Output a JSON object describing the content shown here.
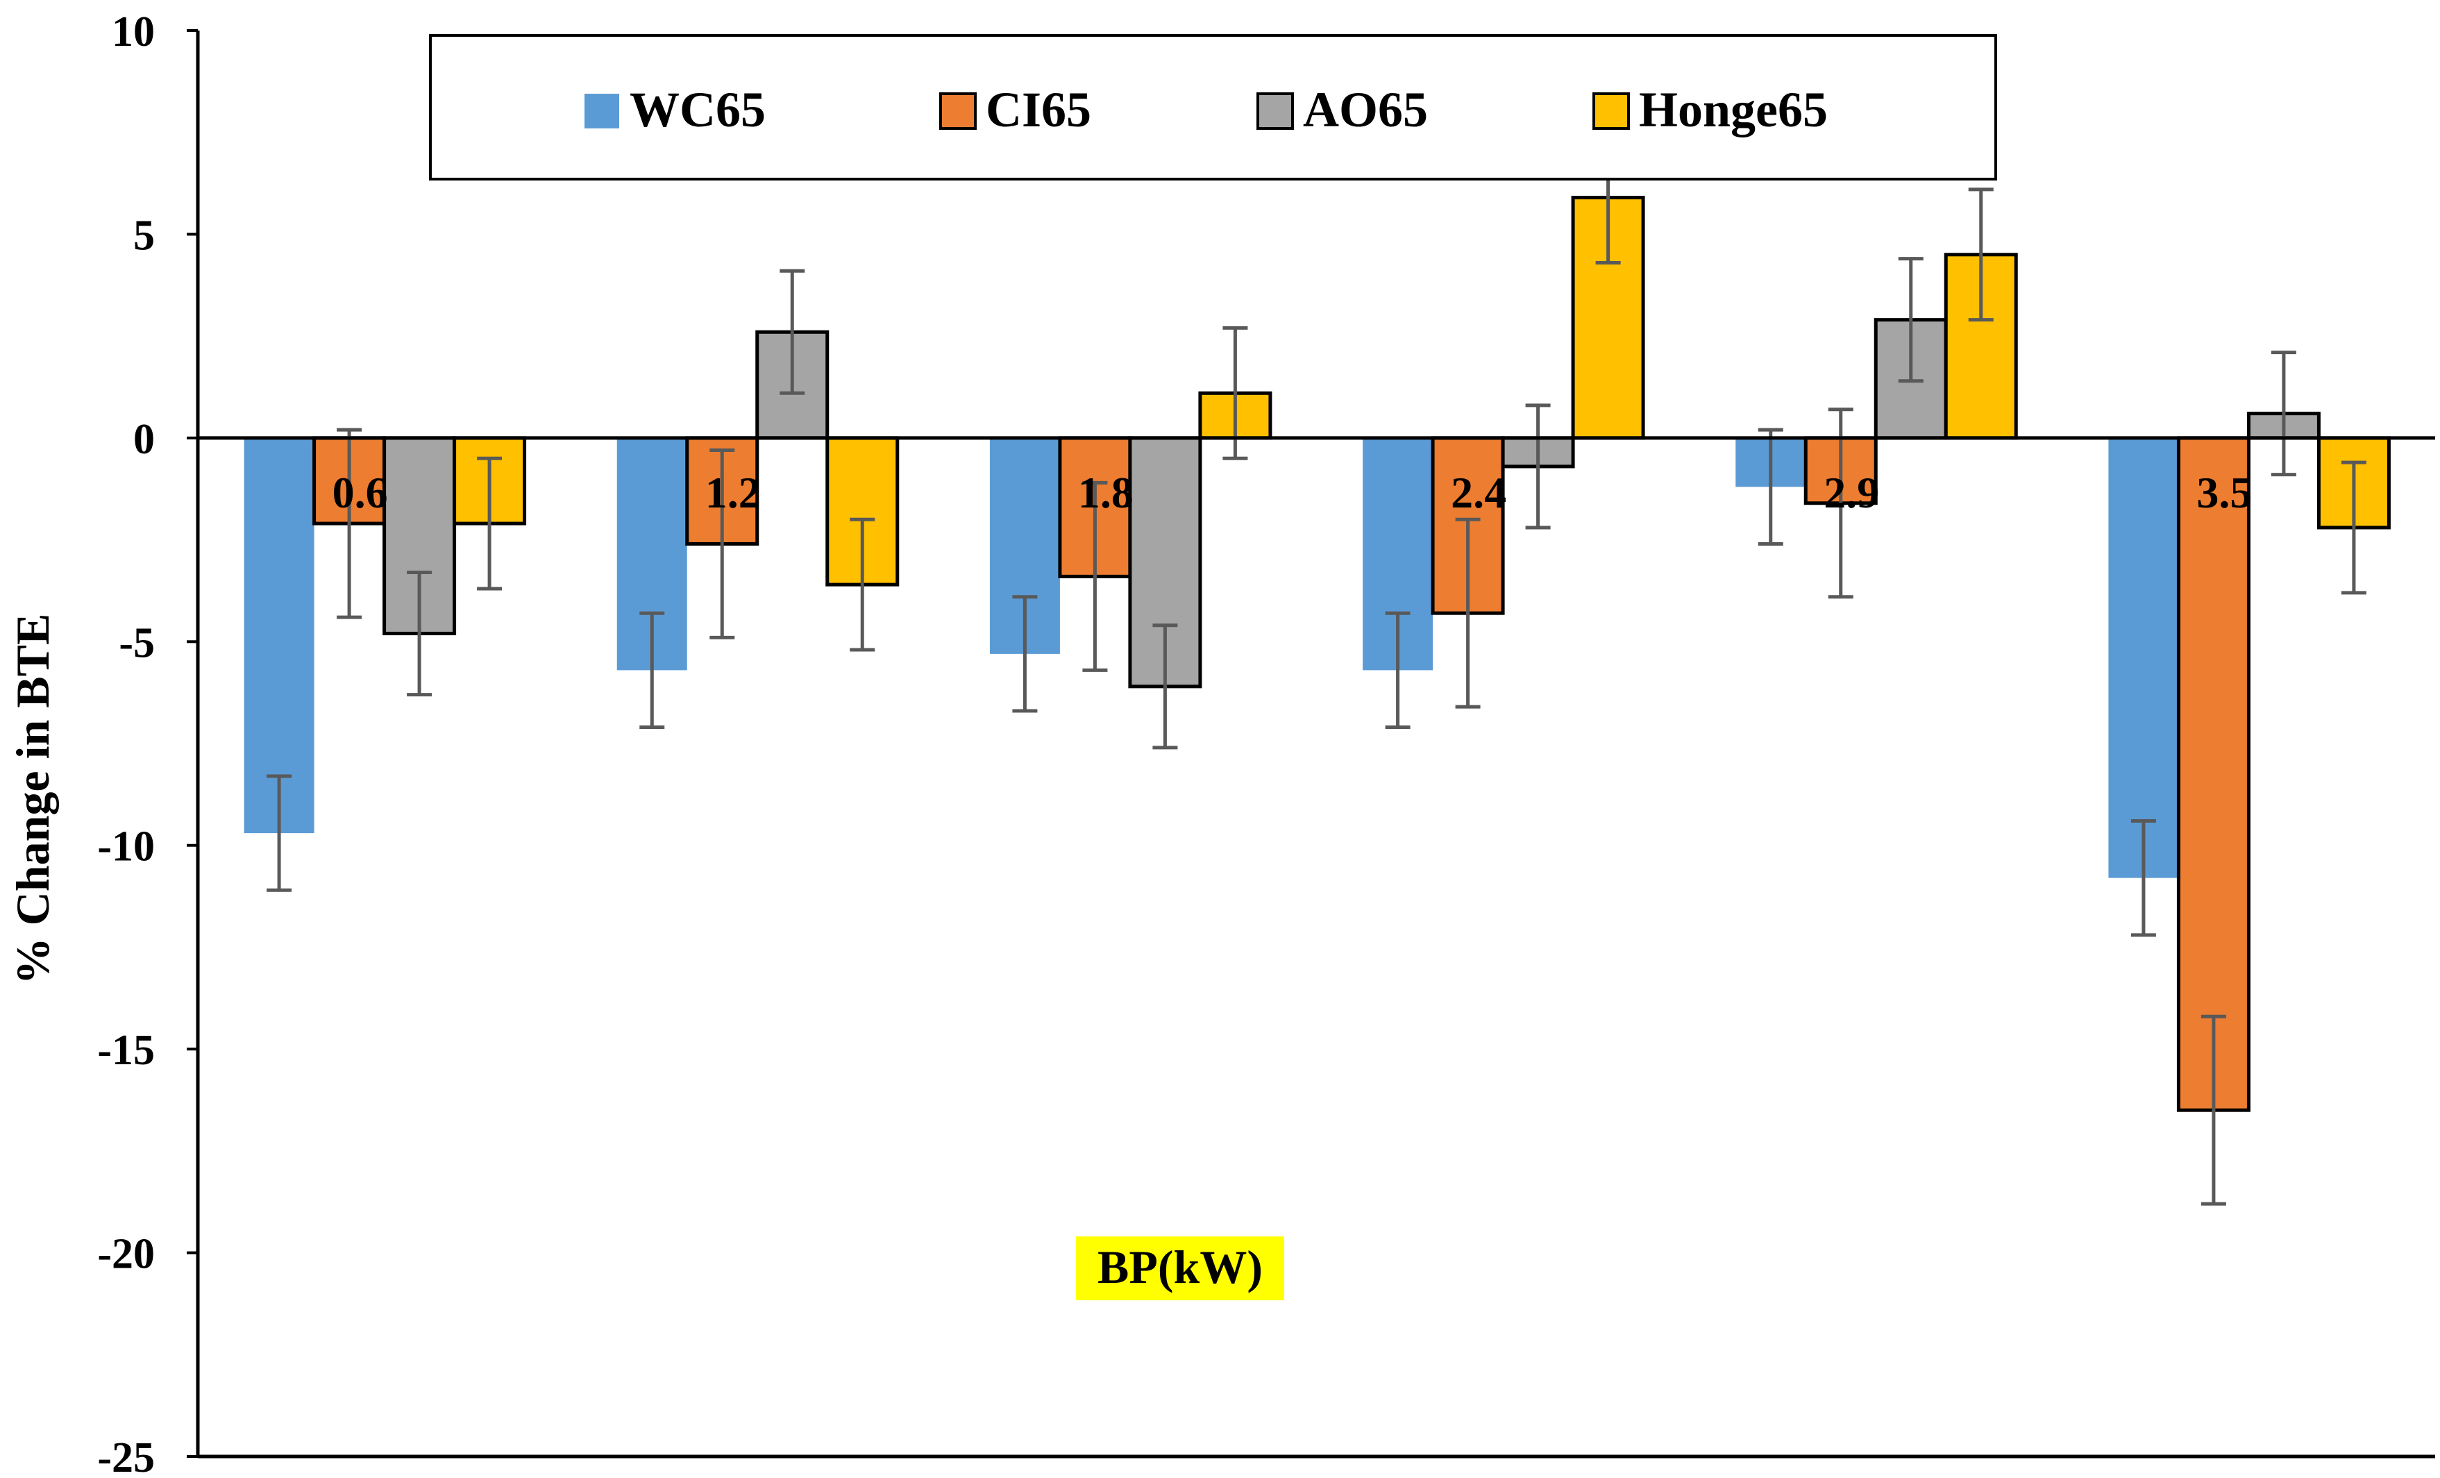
{
  "chart_data": {
    "type": "bar",
    "title": "",
    "xlabel": "BP(kW)",
    "ylabel": "% Change in BTE",
    "ylim": [
      -25,
      10
    ],
    "yticks": [
      -25,
      -20,
      -15,
      -10,
      -5,
      0,
      5,
      10
    ],
    "ytick_labels": [
      "-25",
      "-20",
      "-15",
      "-10",
      "-5",
      "0",
      "5",
      "10"
    ],
    "grid": false,
    "legend_position": "top",
    "categories": [
      "0.6",
      "1.2",
      "1.8",
      "2.4",
      "2.9",
      "3.5"
    ],
    "series": [
      {
        "name": "WC65",
        "color": "#5b9bd5",
        "values": [
          -9.7,
          -5.7,
          -5.3,
          -5.7,
          -1.2,
          -10.8
        ],
        "error": [
          1.4,
          1.4,
          1.4,
          1.4,
          1.4,
          1.4
        ]
      },
      {
        "name": "CI65",
        "color": "#ed7d31",
        "values": [
          -2.1,
          -2.6,
          -3.4,
          -4.3,
          -1.6,
          -16.5
        ],
        "error": [
          2.3,
          2.3,
          2.3,
          2.3,
          2.3,
          2.3
        ]
      },
      {
        "name": "AO65",
        "color": "#a5a5a5",
        "values": [
          -4.8,
          2.6,
          -6.1,
          -0.7,
          2.9,
          0.6
        ],
        "error": [
          1.5,
          1.5,
          1.5,
          1.5,
          1.5,
          1.5
        ]
      },
      {
        "name": "Honge65",
        "color": "#ffc000",
        "values": [
          -2.1,
          -3.6,
          1.1,
          5.9,
          4.5,
          -2.2
        ],
        "error": [
          1.6,
          1.6,
          1.6,
          1.6,
          1.6,
          1.6
        ]
      }
    ],
    "xlabel_highlight_color": "#ffff00",
    "errorbar_color": "#595959"
  }
}
